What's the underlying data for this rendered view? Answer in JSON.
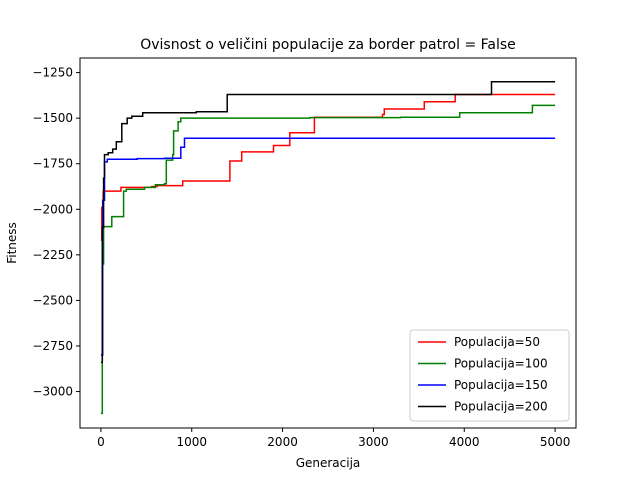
{
  "chart_data": {
    "type": "line",
    "title": "Ovisnost o veličini populacije za border patrol = False",
    "xlabel": "Generacija",
    "ylabel": "Fitness",
    "xlim": [
      -230,
      5230
    ],
    "ylim": [
      -3200,
      -1170
    ],
    "xticks": [
      0,
      1000,
      2000,
      3000,
      4000,
      5000
    ],
    "yticks": [
      -3000,
      -2750,
      -2500,
      -2250,
      -2000,
      -1750,
      -1500,
      -1250
    ],
    "legend_position": "lower-right",
    "grid": false,
    "series": [
      {
        "name": "Populacija=50",
        "color": "#ff0000",
        "steps": [
          [
            0,
            -2170
          ],
          [
            10,
            -1990
          ],
          [
            25,
            -1900
          ],
          [
            220,
            -1880
          ],
          [
            560,
            -1875
          ],
          [
            620,
            -1870
          ],
          [
            900,
            -1845
          ],
          [
            1420,
            -1735
          ],
          [
            1550,
            -1685
          ],
          [
            1900,
            -1650
          ],
          [
            2080,
            -1580
          ],
          [
            2350,
            -1495
          ],
          [
            3100,
            -1480
          ],
          [
            3120,
            -1450
          ],
          [
            3560,
            -1410
          ],
          [
            3900,
            -1370
          ],
          [
            5000,
            -1370
          ]
        ]
      },
      {
        "name": "Populacija=100",
        "color": "#008000",
        "steps": [
          [
            0,
            -3120
          ],
          [
            15,
            -2300
          ],
          [
            30,
            -2095
          ],
          [
            120,
            -2040
          ],
          [
            250,
            -1900
          ],
          [
            280,
            -1890
          ],
          [
            480,
            -1880
          ],
          [
            600,
            -1865
          ],
          [
            700,
            -1860
          ],
          [
            720,
            -1730
          ],
          [
            790,
            -1700
          ],
          [
            800,
            -1570
          ],
          [
            850,
            -1520
          ],
          [
            880,
            -1500
          ],
          [
            2300,
            -1497
          ],
          [
            3300,
            -1495
          ],
          [
            3950,
            -1470
          ],
          [
            4750,
            -1430
          ],
          [
            5000,
            -1430
          ]
        ]
      },
      {
        "name": "Populacija=150",
        "color": "#0000ff",
        "steps": [
          [
            0,
            -2800
          ],
          [
            20,
            -1950
          ],
          [
            40,
            -1740
          ],
          [
            70,
            -1725
          ],
          [
            400,
            -1722
          ],
          [
            700,
            -1720
          ],
          [
            880,
            -1660
          ],
          [
            920,
            -1610
          ],
          [
            5000,
            -1610
          ]
        ]
      },
      {
        "name": "Populacija=200",
        "color": "#000000",
        "steps": [
          [
            0,
            -2840
          ],
          [
            15,
            -2100
          ],
          [
            30,
            -1830
          ],
          [
            40,
            -1700
          ],
          [
            80,
            -1690
          ],
          [
            130,
            -1670
          ],
          [
            170,
            -1630
          ],
          [
            230,
            -1530
          ],
          [
            290,
            -1500
          ],
          [
            340,
            -1490
          ],
          [
            460,
            -1470
          ],
          [
            1050,
            -1465
          ],
          [
            1390,
            -1370
          ],
          [
            4300,
            -1300
          ],
          [
            5000,
            -1300
          ]
        ]
      }
    ]
  }
}
